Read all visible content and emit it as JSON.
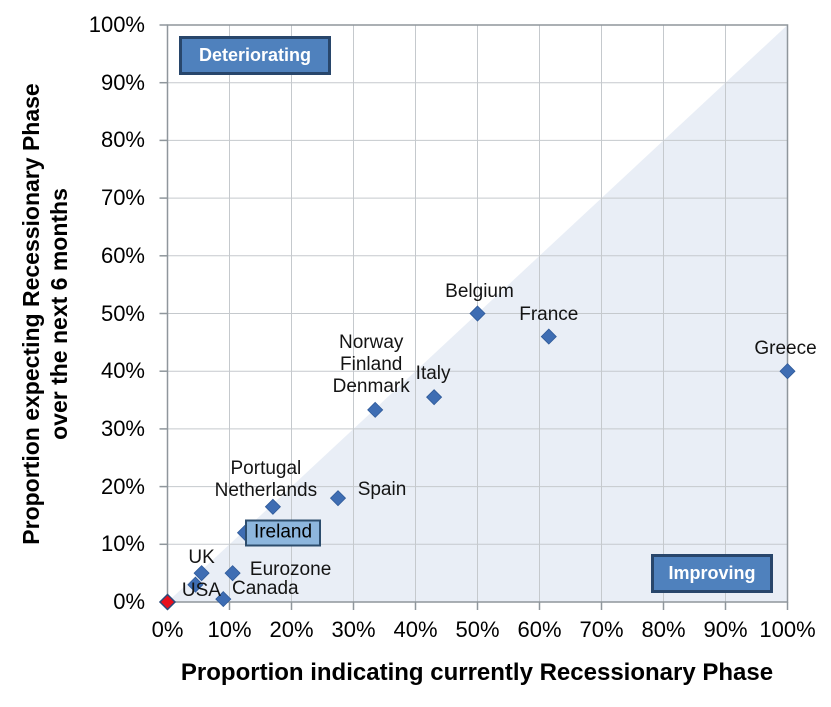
{
  "chart_data": {
    "type": "scatter",
    "title": "",
    "xlabel": "Proportion indicating currently Recessionary Phase",
    "ylabel_lines": [
      "Proportion expecting Recessionary Phase",
      "over the next 6 months"
    ],
    "xlim": [
      0,
      100
    ],
    "ylim": [
      0,
      100
    ],
    "grid": true,
    "x_tick_labels": [
      "0%",
      "10%",
      "20%",
      "30%",
      "40%",
      "50%",
      "60%",
      "70%",
      "80%",
      "90%",
      "100%"
    ],
    "y_tick_labels": [
      "0%",
      "10%",
      "20%",
      "30%",
      "40%",
      "50%",
      "60%",
      "70%",
      "80%",
      "90%",
      "100%"
    ],
    "shaded_triangle": {
      "vertices_pct": [
        [
          0,
          0
        ],
        [
          100,
          0
        ],
        [
          100,
          100
        ]
      ]
    },
    "annotations": [
      {
        "label": "Deteriorating",
        "position": "top-left"
      },
      {
        "label": "Improving",
        "position": "bottom-right"
      }
    ],
    "points": [
      {
        "labels": [],
        "x": 0,
        "y": 0,
        "marker": "red",
        "boxed": false,
        "label_offset": [
          0,
          0
        ]
      },
      {
        "labels": [
          "USA"
        ],
        "x": 4.5,
        "y": 3,
        "marker": "blue",
        "boxed": false,
        "label_offset": [
          6,
          6
        ]
      },
      {
        "labels": [
          "UK"
        ],
        "x": 5.5,
        "y": 5,
        "marker": "blue",
        "boxed": false,
        "label_offset": [
          0,
          -15
        ]
      },
      {
        "labels": [
          "Canada"
        ],
        "x": 9,
        "y": 0.5,
        "marker": "blue",
        "boxed": false,
        "label_offset": [
          42,
          -10
        ]
      },
      {
        "labels": [
          "Eurozone"
        ],
        "x": 10.5,
        "y": 5,
        "marker": "blue",
        "boxed": false,
        "label_offset": [
          58,
          -3
        ]
      },
      {
        "labels": [
          "Ireland"
        ],
        "x": 12.5,
        "y": 12,
        "marker": "blue",
        "boxed": true,
        "label_offset": [
          38,
          0
        ]
      },
      {
        "labels": [
          "Portugal",
          "Netherlands"
        ],
        "x": 17,
        "y": 16.5,
        "marker": "blue",
        "boxed": false,
        "label_offset": [
          -7,
          -27
        ]
      },
      {
        "labels": [
          "Spain"
        ],
        "x": 27.5,
        "y": 18,
        "marker": "blue",
        "boxed": false,
        "label_offset": [
          44,
          -8
        ]
      },
      {
        "labels": [
          "Norway",
          "Finland",
          "Denmark"
        ],
        "x": 33.5,
        "y": 33.3,
        "marker": "blue",
        "boxed": false,
        "label_offset": [
          -4,
          -45
        ]
      },
      {
        "labels": [
          "Italy"
        ],
        "x": 43,
        "y": 35.5,
        "marker": "blue",
        "boxed": false,
        "label_offset": [
          -1,
          -23
        ]
      },
      {
        "labels": [
          "Belgium"
        ],
        "x": 50,
        "y": 50,
        "marker": "blue",
        "boxed": false,
        "label_offset": [
          2,
          -22
        ]
      },
      {
        "labels": [
          "France"
        ],
        "x": 61.5,
        "y": 46,
        "marker": "blue",
        "boxed": false,
        "label_offset": [
          0,
          -22
        ]
      },
      {
        "labels": [
          "Greece"
        ],
        "x": 100,
        "y": 40,
        "marker": "blue",
        "boxed": false,
        "label_offset": [
          -2,
          -22
        ]
      }
    ],
    "colors": {
      "marker_blue": "#3e6db3",
      "marker_blue_border": "#2f5a99",
      "marker_red": "#e8101d",
      "marker_red_border": "#2a4a7a",
      "shaded_triangle": "#e9eef6",
      "gridline": "#c5c9cd",
      "axis": "#8f969c",
      "annotation_box_fill": "#4f81bd",
      "annotation_box_border": "#28466b",
      "highlight_box_fill": "#8db6dd",
      "highlight_box_border": "#2d4d6d"
    }
  }
}
